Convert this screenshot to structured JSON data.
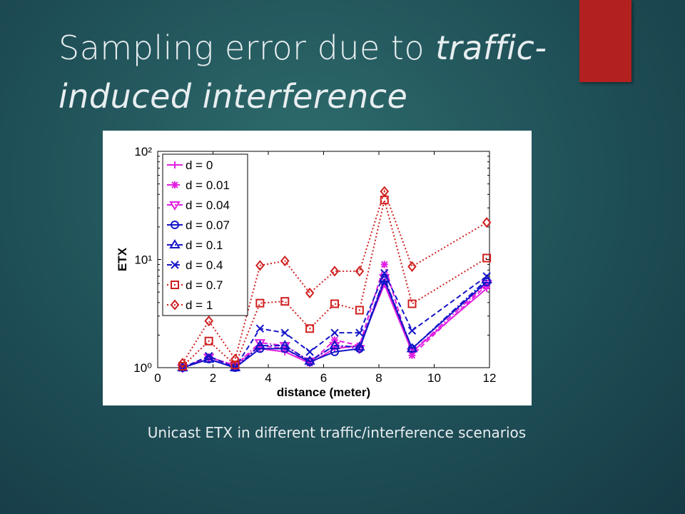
{
  "title": {
    "line1_normal": "Sampling error due to ",
    "line1_italic": "traffic-",
    "line2": "induced interference"
  },
  "caption": "Unicast ETX in different traffic/interference scenarios",
  "chart_data": {
    "type": "line",
    "log_y": true,
    "x_label": "distance (meter)",
    "y_label": "ETX",
    "xlim": [
      0,
      12
    ],
    "xticks": [
      0,
      2,
      4,
      6,
      8,
      10,
      12
    ],
    "ylim": [
      1,
      100
    ],
    "yticks": [
      {
        "value": 1,
        "label": "10⁰"
      },
      {
        "value": 10,
        "label": "10¹"
      },
      {
        "value": 100,
        "label": "10²"
      }
    ],
    "legend": "upper left",
    "x": [
      0.9,
      1.85,
      2.8,
      3.7,
      4.6,
      5.5,
      6.4,
      7.3,
      8.2,
      9.2,
      11.9
    ],
    "series": [
      {
        "name": "d = 0",
        "color": "#e020e0",
        "dash": "solid",
        "marker": "plus",
        "values": [
          1.0,
          1.2,
          1.0,
          1.5,
          1.4,
          1.1,
          1.5,
          1.6,
          5.9,
          1.4,
          5.4
        ]
      },
      {
        "name": "d = 0.01",
        "color": "#e020e0",
        "dash": "dashed",
        "marker": "star",
        "values": [
          1.0,
          1.25,
          1.05,
          1.6,
          1.5,
          1.1,
          1.8,
          1.6,
          9.0,
          1.3,
          5.8
        ]
      },
      {
        "name": "d = 0.04",
        "color": "#e020e0",
        "dash": "dashdot",
        "marker": "triangle-down",
        "values": [
          1.0,
          1.25,
          1.05,
          1.7,
          1.6,
          1.15,
          1.6,
          1.5,
          6.8,
          1.4,
          6.0
        ]
      },
      {
        "name": "d = 0.07",
        "color": "#1515c8",
        "dash": "solid",
        "marker": "circle",
        "values": [
          1.0,
          1.2,
          1.0,
          1.5,
          1.5,
          1.13,
          1.4,
          1.5,
          6.4,
          1.5,
          6.2
        ]
      },
      {
        "name": "d = 0.1",
        "color": "#1515c8",
        "dash": "dashdot",
        "marker": "triangle-up",
        "values": [
          1.0,
          1.2,
          1.0,
          1.6,
          1.6,
          1.15,
          1.6,
          1.55,
          6.7,
          1.5,
          6.5
        ]
      },
      {
        "name": "d = 0.4",
        "color": "#1515c8",
        "dash": "dashed",
        "marker": "x",
        "values": [
          1.0,
          1.28,
          1.0,
          2.3,
          2.1,
          1.4,
          2.1,
          2.1,
          7.5,
          2.2,
          7.0
        ]
      },
      {
        "name": "d = 0.7",
        "color": "#d02020",
        "dash": "dotted",
        "marker": "square",
        "values": [
          1.03,
          1.76,
          1.06,
          3.95,
          4.1,
          2.3,
          3.9,
          3.4,
          35.5,
          3.9,
          10.3
        ]
      },
      {
        "name": "d = 1",
        "color": "#d02020",
        "dash": "dotted",
        "marker": "diamond",
        "values": [
          1.1,
          2.7,
          1.2,
          8.8,
          9.7,
          4.9,
          7.8,
          7.8,
          42.6,
          8.6,
          22
        ]
      }
    ]
  }
}
